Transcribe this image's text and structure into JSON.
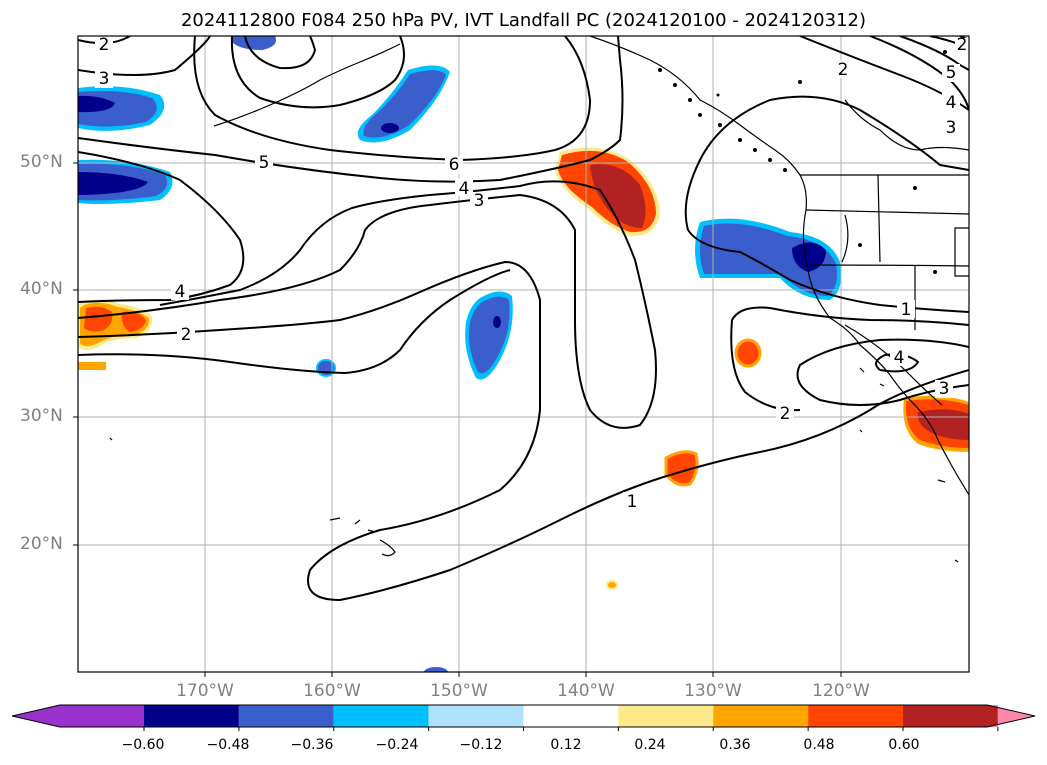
{
  "title": "2024112800 F084 250 hPa PV, IVT Landfall PC (2024120100 - 2024120312)",
  "lat_labels": [
    "50°N",
    "40°N",
    "30°N",
    "20°N"
  ],
  "lon_labels": [
    "170°W",
    "160°W",
    "150°W",
    "140°W",
    "130°W",
    "120°W"
  ],
  "contour_labels": [
    "2",
    "3",
    "5",
    "6",
    "4",
    "3",
    "4",
    "2",
    "2",
    "5",
    "4",
    "3",
    "1",
    "4",
    "3",
    "2",
    "1",
    "2"
  ],
  "colorbar": {
    "tick_labels": [
      "−0.60",
      "−0.48",
      "−0.36",
      "−0.24",
      "−0.12",
      "0.12",
      "0.24",
      "0.36",
      "0.48",
      "0.60"
    ],
    "colors": [
      "#9932cc",
      "#00008b",
      "#3a5fcd",
      "#00bfff",
      "#b0e2ff",
      "#ffffff",
      "#fce98a",
      "#ffa500",
      "#ff4500",
      "#b22222",
      "#ff88aa"
    ]
  },
  "colors": {
    "neg_dark": "#00008b",
    "neg_mid": "#3a5fcd",
    "neg_light": "#00bfff",
    "pos_light": "#fce98a",
    "pos_mid": "#ffa500",
    "pos_strong": "#ff4500",
    "pos_dark": "#b22222"
  }
}
